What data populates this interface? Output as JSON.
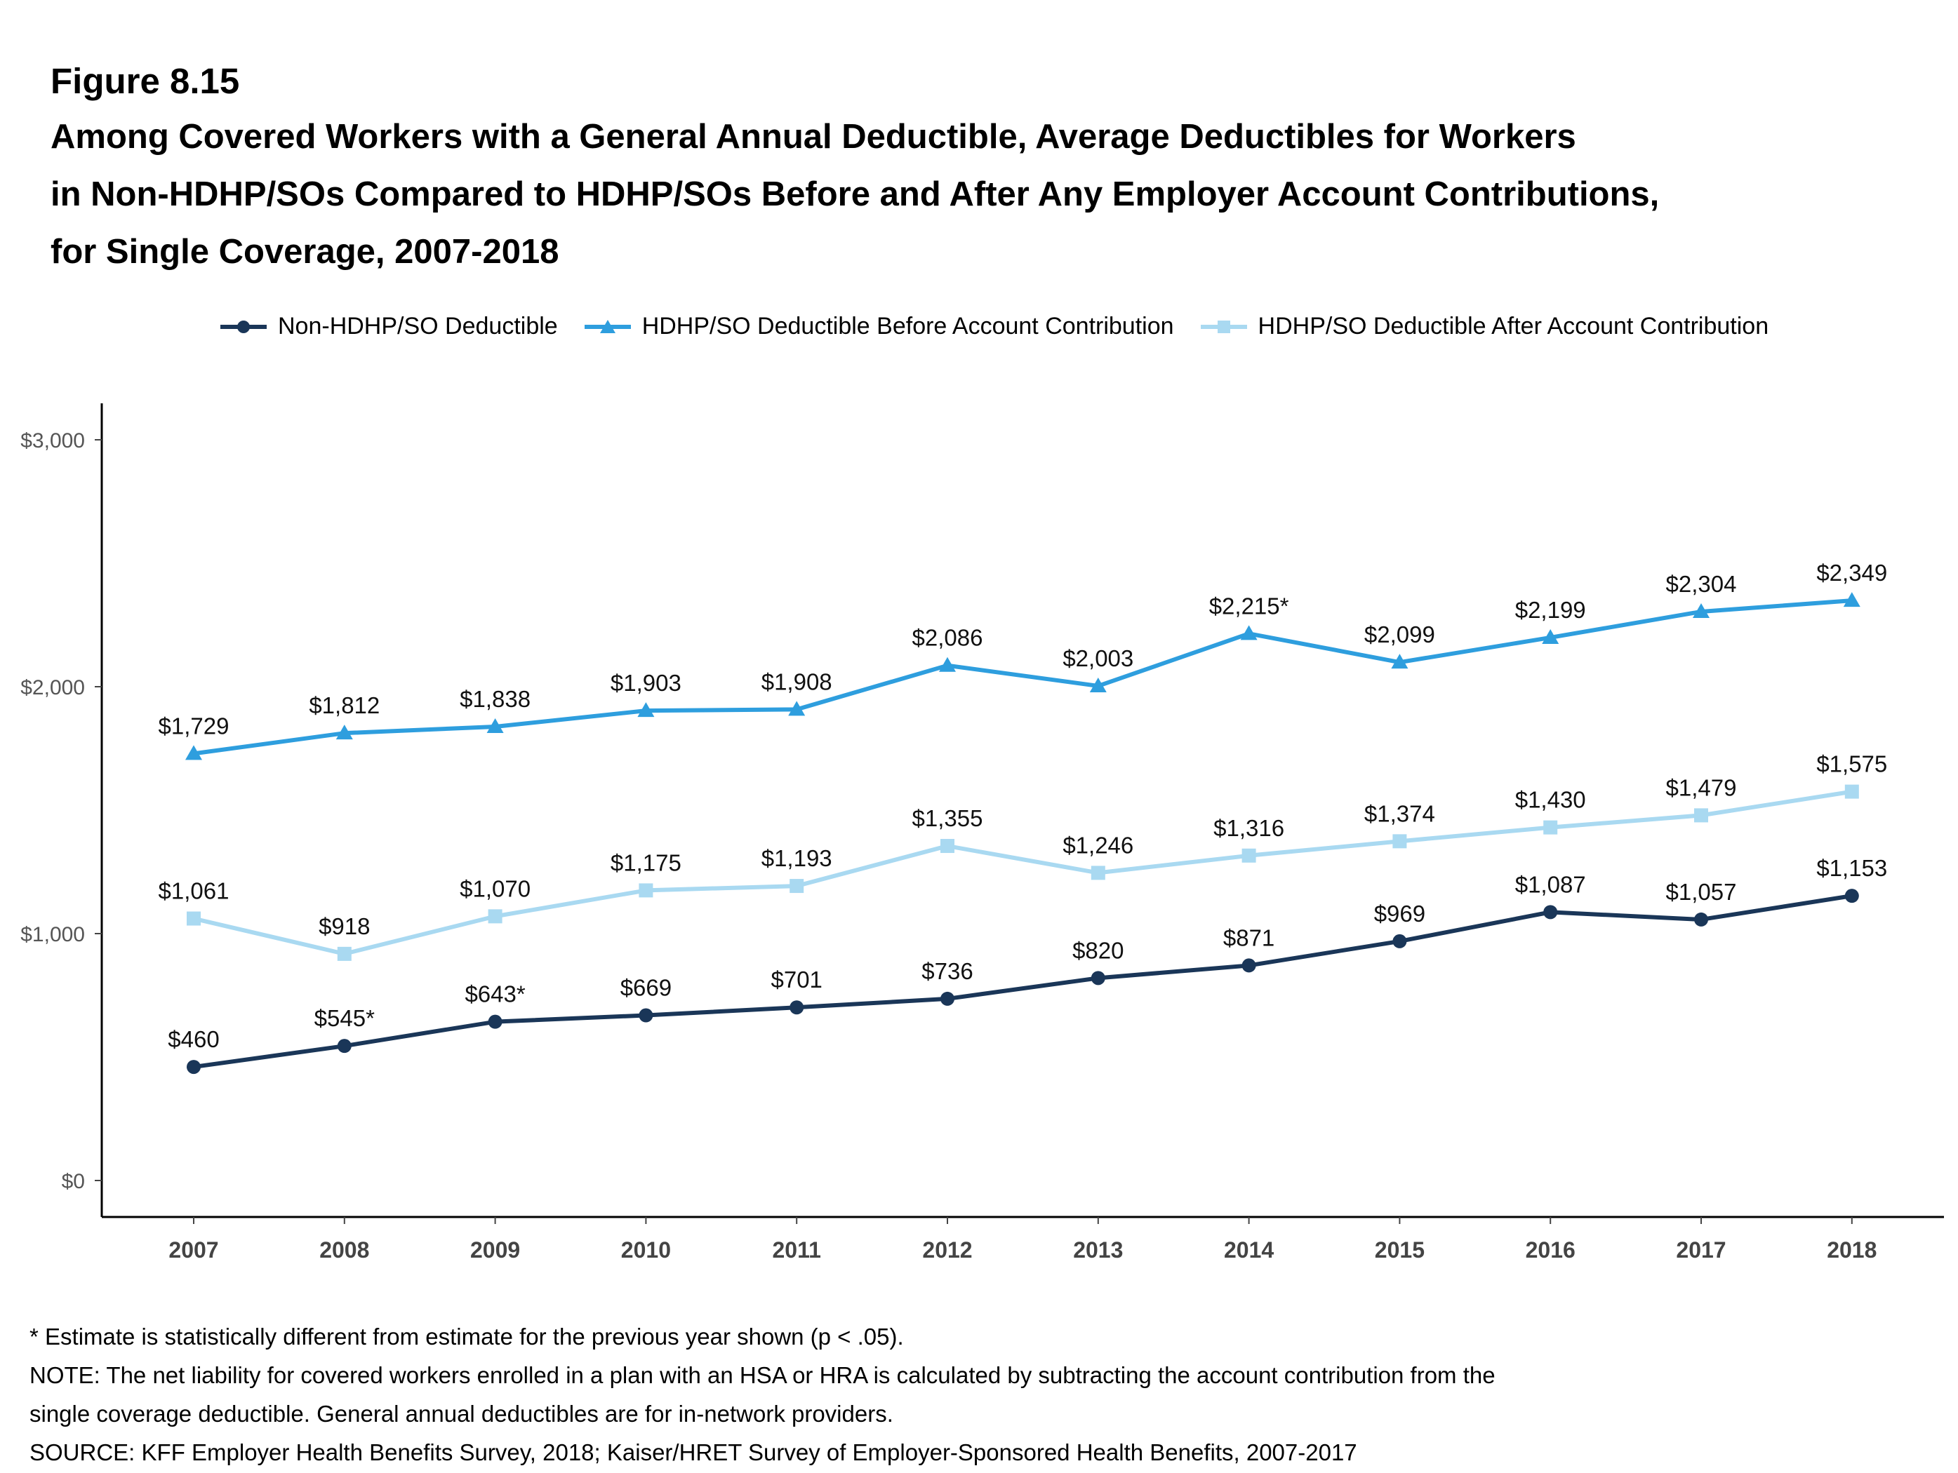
{
  "figure_label": "Figure 8.15",
  "title": "Among Covered Workers with a General Annual Deductible, Average Deductibles for Workers\nin Non-HDHP/SOs Compared to HDHP/SOs Before and After Any Employer Account Contributions,\nfor Single Coverage, 2007-2018",
  "notes": [
    "* Estimate is statistically different from estimate for the previous year shown (p < .05).",
    "NOTE: The net liability for covered workers enrolled in a plan with an HSA or HRA is calculated by subtracting the account contribution from the",
    "single coverage deductible. General annual deductibles are for in-network providers.",
    "SOURCE: KFF Employer Health Benefits Survey, 2018; Kaiser/HRET Survey of Employer-Sponsored Health Benefits, 2007-2017"
  ],
  "chart_data": {
    "type": "line",
    "title": "",
    "xlabel": "",
    "ylabel": "",
    "categories": [
      "2007",
      "2008",
      "2009",
      "2010",
      "2011",
      "2012",
      "2013",
      "2014",
      "2015",
      "2016",
      "2017",
      "2018"
    ],
    "yticks": [
      "$0",
      "$1,000",
      "$2,000",
      "$3,000"
    ],
    "ylim": [
      0,
      3000
    ],
    "grid": false,
    "legend_position": "top",
    "series": [
      {
        "name": "Non-HDHP/SO Deductible",
        "color": "#1a3658",
        "marker": "circle",
        "values": [
          460,
          545,
          643,
          669,
          701,
          736,
          820,
          871,
          969,
          1087,
          1057,
          1153
        ],
        "labels": [
          "$460",
          "$545*",
          "$643*",
          "$669",
          "$701",
          "$736",
          "$820",
          "$871",
          "$969",
          "$1,087",
          "$1,057",
          "$1,153"
        ]
      },
      {
        "name": "HDHP/SO Deductible Before Account Contribution",
        "color": "#2e9ede",
        "marker": "triangle",
        "values": [
          1729,
          1812,
          1838,
          1903,
          1908,
          2086,
          2003,
          2215,
          2099,
          2199,
          2304,
          2349
        ],
        "labels": [
          "$1,729",
          "$1,812",
          "$1,838",
          "$1,903",
          "$1,908",
          "$2,086",
          "$2,003",
          "$2,215*",
          "$2,099",
          "$2,199",
          "$2,304",
          "$2,349"
        ]
      },
      {
        "name": "HDHP/SO Deductible After Account Contribution",
        "color": "#a9d9f1",
        "marker": "square",
        "values": [
          1061,
          918,
          1070,
          1175,
          1193,
          1355,
          1246,
          1316,
          1374,
          1430,
          1479,
          1575
        ],
        "labels": [
          "$1,061",
          "$918",
          "$1,070",
          "$1,175",
          "$1,193",
          "$1,355",
          "$1,246",
          "$1,316",
          "$1,374",
          "$1,430",
          "$1,479",
          "$1,575"
        ]
      }
    ]
  }
}
